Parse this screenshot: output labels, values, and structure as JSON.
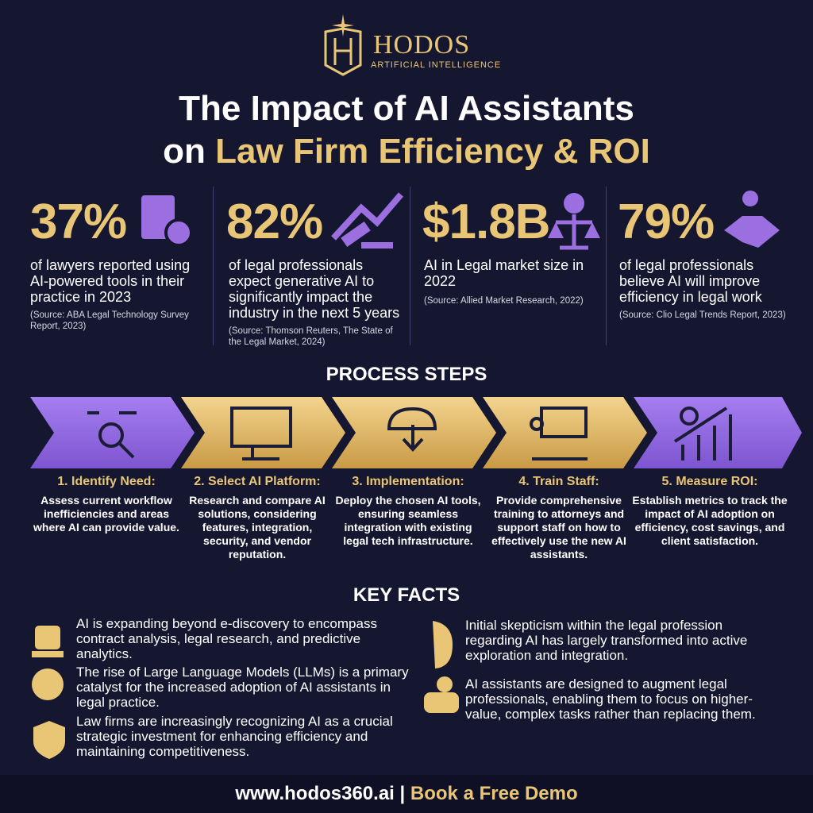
{
  "header": {
    "brand": "HODOS",
    "tagline": "ARTIFICIAL INTELLIGENCE",
    "title_line1": "The Impact of AI Assistants",
    "title_line2_prefix": "on",
    "title_line2_highlight": "Law Firm Efficiency & ROI"
  },
  "stats": [
    {
      "value": "37%",
      "text": "of lawyers reported using AI-powered tools in their practice in 2023",
      "source": "(Source: ABA Legal Technology Survey Report, 2023)"
    },
    {
      "value": "82%",
      "text": "of legal professionals expect generative AI to significantly impact the industry in the next 5 years",
      "source": "(Source: Thomson Reuters, The State of the Legal Market, 2024)"
    },
    {
      "value": "$1.8B",
      "text": "AI in Legal market size in 2022",
      "source": "(Source: Allied Market Research, 2022)"
    },
    {
      "value": "79%",
      "text": "of legal professionals believe AI will improve efficiency in legal work",
      "source": "(Source: Clio Legal Trends Report, 2023)"
    }
  ],
  "process": {
    "title": "PROCESS STEPS",
    "steps": [
      {
        "title": "1. Identify Need:",
        "text": "Assess current workflow inefficiencies and areas where AI can provide value."
      },
      {
        "title": "2. Select AI Platform:",
        "text": "Research and compare AI solutions, considering features, integration, security, and vendor reputation."
      },
      {
        "title": "3. Implementation:",
        "text": "Deploy the chosen AI tools, ensuring seamless integration with existing legal tech infrastructure."
      },
      {
        "title": "4. Train Staff:",
        "text": "Provide comprehensive training to attorneys and support staff on how to effectively use the new AI assistants."
      },
      {
        "title": "5. Measure ROI:",
        "text": "Establish metrics to track the impact of AI adoption on efficiency, cost savings, and client satisfaction."
      }
    ]
  },
  "key_facts": {
    "title": "KEY FACTS",
    "left": [
      "AI is expanding beyond e-discovery to encompass contract analysis, legal research, and predictive analytics.",
      "The rise of Large Language Models (LLMs) is a primary catalyst for the increased adoption of AI assistants in legal practice.",
      "Law firms are increasingly recognizing AI as a crucial strategic investment for enhancing efficiency and maintaining competitiveness."
    ],
    "right": [
      "Initial skepticism within the legal profession regarding AI has largely transformed into active exploration and integration.",
      "AI assistants are designed to augment legal professionals, enabling them to focus on higher-value, complex tasks rather than replacing them."
    ]
  },
  "footer": {
    "url": "www.hodos360.ai",
    "separator": "|",
    "cta": "Book a Free Demo"
  }
}
